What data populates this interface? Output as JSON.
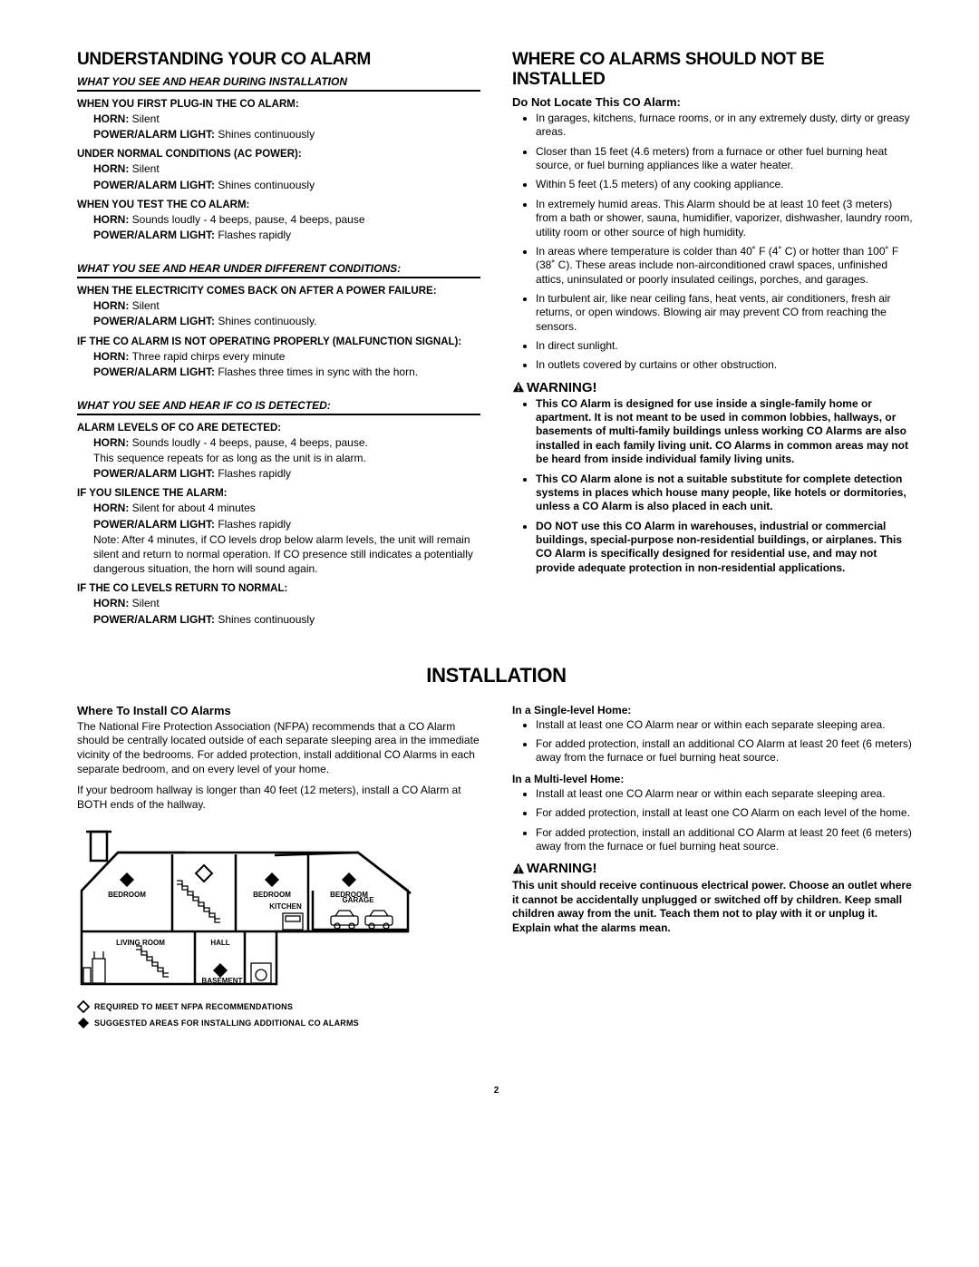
{
  "s1": {
    "title": "UNDERSTANDING YOUR CO ALARM",
    "groups": [
      {
        "header": "WHAT YOU SEE AND HEAR DURING INSTALLATION",
        "items": [
          {
            "title": "WHEN YOU FIRST PLUG-IN THE CO ALARM:",
            "horn": "Silent",
            "light": "Shines continuously"
          },
          {
            "title": "UNDER NORMAL CONDITIONS (AC POWER):",
            "horn": "Silent",
            "light": "Shines continuously"
          },
          {
            "title": "WHEN YOU TEST THE CO ALARM:",
            "horn": "Sounds loudly - 4 beeps, pause, 4 beeps, pause",
            "light": "Flashes rapidly"
          }
        ]
      },
      {
        "header": "WHAT YOU SEE AND HEAR UNDER DIFFERENT CONDITIONS:",
        "items": [
          {
            "title": "WHEN THE ELECTRICITY COMES BACK ON AFTER A POWER FAILURE:",
            "horn": "Silent",
            "light": "Shines continuously."
          },
          {
            "title": "IF THE CO ALARM IS NOT OPERATING PROPERLY (MALFUNCTION SIGNAL):",
            "horn": "Three rapid chirps every minute",
            "light": "Flashes three times in sync with the horn."
          }
        ]
      },
      {
        "header": "WHAT YOU SEE AND HEAR IF CO IS DETECTED:",
        "items": [
          {
            "title": "ALARM LEVELS OF CO ARE DETECTED:",
            "horn": "Sounds loudly - 4 beeps, pause, 4 beeps, pause.",
            "horn_extra": "This sequence repeats for as long as the unit is in alarm.",
            "light": "Flashes rapidly"
          },
          {
            "title": "IF YOU SILENCE THE ALARM:",
            "horn": "Silent for about 4 minutes",
            "light": "Flashes rapidly",
            "note": "Note: After 4 minutes, if CO levels drop below alarm levels, the unit will remain silent and return to normal operation. If CO presence still indicates a potentially dangerous situation, the horn will sound again."
          },
          {
            "title": "IF THE CO LEVELS RETURN TO NORMAL:",
            "horn": "Silent",
            "light": "Shines continuously"
          }
        ]
      }
    ],
    "horn_label": "HORN:",
    "light_label": "POWER/ALARM LIGHT:"
  },
  "s2": {
    "title": "WHERE CO ALARMS SHOULD NOT BE INSTALLED",
    "subhead": "Do Not Locate This CO Alarm:",
    "bullets": [
      "In garages, kitchens, furnace rooms, or in any extremely dusty, dirty or greasy areas.",
      "Closer than 15 feet (4.6 meters) from a furnace or other fuel burning heat source, or fuel burning appliances like a water heater.",
      "Within 5 feet (1.5 meters) of any cooking appliance.",
      "In extremely humid areas. This Alarm should be at least 10 feet (3 meters) from a bath or shower, sauna, humidifier, vaporizer, dishwasher, laundry room, utility room or other source of high humidity.",
      "In areas where temperature is colder than 40˚ F (4˚ C) or hotter than 100˚ F (38˚ C). These areas include non-airconditioned crawl spaces, unfinished attics, uninsulated or poorly insulated ceilings, porches, and garages.",
      "In turbulent air, like near ceiling fans, heat vents, air conditioners, fresh air returns, or open windows. Blowing air may prevent CO from reaching the sensors.",
      "In direct sunlight.",
      "In outlets covered by curtains or other obstruction."
    ],
    "warning": "WARNING!",
    "warn_bullets": [
      "This CO Alarm is designed for use inside a single-family home or apartment. It is not meant to be used in common lobbies, hallways, or basements of multi-family buildings unless working CO Alarms are also installed in each family living unit. CO Alarms in common areas may not be heard from inside individual family living units.",
      "This CO Alarm alone is not a suitable substitute for complete detection systems in places which house many people, like hotels or dormitories, unless a CO Alarm is also placed in each unit.",
      "DO NOT use this CO Alarm in warehouses, industrial or commercial buildings, special-purpose non-residential buildings, or airplanes. This CO Alarm is specifically designed for residential use, and may not provide adequate protection in non-residential applications."
    ]
  },
  "install": {
    "title": "INSTALLATION",
    "left": {
      "subhead": "Where To Install CO Alarms",
      "p1": "The National Fire Protection Association (NFPA) recommends that a CO Alarm should be centrally located outside of each separate sleeping area in the immediate vicinity of the bedrooms. For added protection, install additional CO Alarms in each separate bedroom, and on every level of your home.",
      "p2": "If your bedroom hallway is longer than 40 feet (12 meters), install a CO Alarm at BOTH ends of the hallway.",
      "legend1": "REQUIRED TO MEET NFPA RECOMMENDATIONS",
      "legend2": "SUGGESTED AREAS FOR INSTALLING ADDITIONAL CO ALARMS",
      "rooms": {
        "bedroom": "BEDROOM",
        "living": "LIVING ROOM",
        "hall": "HALL",
        "kitchen": "KITCHEN",
        "garage": "GARAGE",
        "basement": "BASEMENT"
      }
    },
    "right": {
      "single_t": "In a Single-level Home:",
      "single_b": [
        "Install at least one CO Alarm near or within each separate sleeping area.",
        "For added protection, install an additional CO Alarm at least 20 feet (6 meters) away from the furnace or fuel burning heat source."
      ],
      "multi_t": "In a Multi-level Home:",
      "multi_b": [
        "Install at least one CO Alarm near or within each separate sleeping area.",
        "For added protection, install at least one CO Alarm on each level of the home.",
        "For added protection, install an additional CO Alarm at least 20 feet (6 meters) away from the furnace or fuel burning heat source."
      ],
      "warning": "WARNING!",
      "warn_text": "This unit should receive continuous electrical power. Choose an outlet where it cannot be accidentally unplugged or switched off by children. Keep small children away from the unit. Teach them not to play with it or unplug it. Explain what the alarms mean."
    }
  },
  "page_num": "2"
}
